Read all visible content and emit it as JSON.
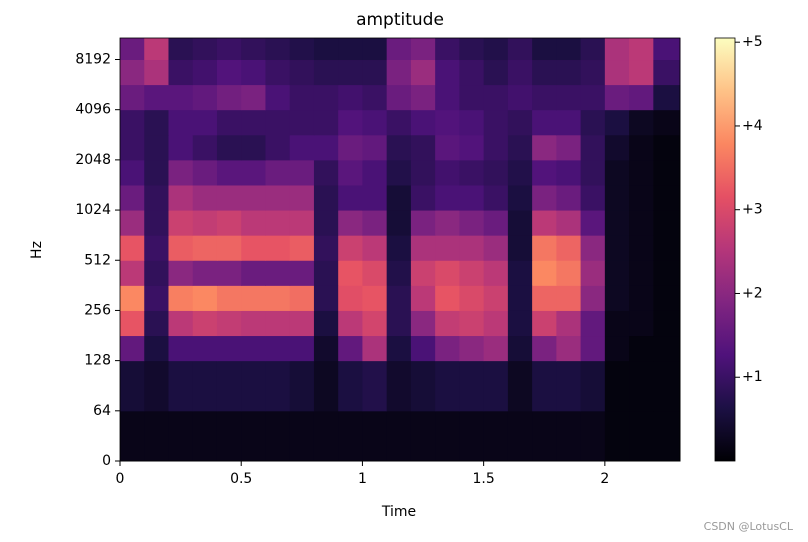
{
  "chart_data": {
    "type": "heatmap",
    "title": "amptitude",
    "x_label": "Time",
    "y_label": "Hz",
    "watermark": "CSDN @LotusCL",
    "colormap": "magma",
    "xlim": [
      0,
      2.31
    ],
    "xticks": [
      0,
      0.5,
      1,
      1.5,
      2
    ],
    "ylim": [
      0,
      11025
    ],
    "yscale": "symlog",
    "linthresh": 64,
    "yticks": [
      0,
      64,
      128,
      256,
      512,
      1024,
      2048,
      4096,
      8192
    ],
    "clim": [
      0,
      5.05
    ],
    "cticks": [
      {
        "value": 1,
        "label": "+1"
      },
      {
        "value": 2,
        "label": "+2"
      },
      {
        "value": 3,
        "label": "+3"
      },
      {
        "value": 4,
        "label": "+4"
      },
      {
        "value": 5,
        "label": "+5"
      }
    ],
    "x_edges": [
      0,
      0.1,
      0.2,
      0.3,
      0.4,
      0.5,
      0.6,
      0.7,
      0.8,
      0.9,
      1.0,
      1.1,
      1.2,
      1.3,
      1.4,
      1.5,
      1.6,
      1.7,
      1.8,
      1.9,
      2.0,
      2.1,
      2.2,
      2.31
    ],
    "y_edges": [
      0,
      64,
      128,
      181,
      256,
      362,
      512,
      724,
      1024,
      1448,
      2048,
      2896,
      4096,
      5793,
      8192,
      11025
    ],
    "z": [
      [
        0.2,
        0.2,
        0.2,
        0.2,
        0.2,
        0.2,
        0.2,
        0.2,
        0.2,
        0.2,
        0.2,
        0.2,
        0.2,
        0.2,
        0.2,
        0.2,
        0.2,
        0.2,
        0.2,
        0.2,
        0.1,
        0.1,
        0.1
      ],
      [
        0.5,
        0.4,
        0.6,
        0.6,
        0.6,
        0.6,
        0.6,
        0.5,
        0.3,
        0.6,
        0.7,
        0.4,
        0.5,
        0.6,
        0.6,
        0.6,
        0.3,
        0.6,
        0.6,
        0.5,
        0.1,
        0.1,
        0.1
      ],
      [
        1.5,
        0.6,
        1.2,
        1.2,
        1.2,
        1.2,
        1.2,
        1.2,
        0.4,
        1.5,
        2.4,
        0.6,
        1.2,
        1.8,
        2.0,
        2.2,
        0.5,
        1.8,
        2.2,
        1.5,
        0.2,
        0.1,
        0.1
      ],
      [
        3.2,
        0.8,
        2.6,
        2.8,
        2.7,
        2.6,
        2.6,
        2.6,
        0.6,
        2.6,
        2.9,
        0.8,
        2.0,
        2.7,
        2.8,
        2.6,
        0.6,
        2.8,
        2.4,
        1.5,
        0.2,
        0.2,
        0.1
      ],
      [
        3.8,
        1.0,
        3.7,
        3.8,
        3.6,
        3.6,
        3.6,
        3.5,
        0.8,
        3.1,
        3.2,
        0.8,
        2.6,
        3.2,
        3.0,
        2.8,
        0.6,
        3.4,
        3.4,
        2.0,
        0.3,
        0.2,
        0.1
      ],
      [
        2.6,
        0.9,
        2.0,
        1.8,
        1.8,
        1.6,
        1.6,
        1.6,
        0.8,
        3.2,
        3.0,
        0.7,
        2.8,
        3.0,
        2.8,
        2.6,
        0.6,
        3.8,
        3.6,
        2.2,
        0.3,
        0.2,
        0.1
      ],
      [
        3.2,
        1.0,
        3.3,
        3.4,
        3.4,
        3.2,
        3.2,
        3.3,
        0.9,
        2.8,
        2.6,
        0.6,
        2.4,
        2.4,
        2.4,
        2.2,
        0.5,
        3.6,
        3.4,
        2.0,
        0.3,
        0.2,
        0.1
      ],
      [
        2.2,
        0.9,
        2.8,
        2.7,
        2.8,
        2.6,
        2.6,
        2.6,
        0.8,
        2.0,
        1.8,
        0.5,
        1.8,
        2.0,
        1.8,
        1.6,
        0.5,
        2.6,
        2.4,
        1.4,
        0.3,
        0.2,
        0.1
      ],
      [
        1.6,
        0.9,
        2.4,
        2.2,
        2.2,
        2.2,
        2.2,
        2.2,
        0.8,
        1.2,
        1.2,
        0.5,
        1.0,
        1.2,
        1.2,
        1.0,
        0.6,
        1.8,
        1.6,
        1.0,
        0.3,
        0.2,
        0.1
      ],
      [
        1.2,
        0.8,
        1.8,
        1.6,
        1.4,
        1.4,
        1.6,
        1.6,
        0.9,
        1.4,
        1.2,
        0.7,
        0.9,
        1.1,
        1.0,
        0.9,
        0.7,
        1.3,
        1.2,
        0.9,
        0.3,
        0.2,
        0.1
      ],
      [
        1.0,
        0.8,
        1.2,
        1.0,
        0.8,
        0.8,
        1.0,
        1.2,
        1.2,
        1.6,
        1.5,
        0.8,
        0.9,
        1.4,
        1.3,
        1.0,
        0.8,
        2.0,
        1.8,
        0.9,
        0.4,
        0.2,
        0.1
      ],
      [
        1.0,
        0.8,
        1.2,
        1.2,
        1.0,
        1.0,
        1.0,
        1.0,
        1.0,
        1.3,
        1.2,
        1.0,
        1.2,
        1.3,
        1.2,
        1.0,
        0.9,
        1.2,
        1.2,
        0.8,
        0.6,
        0.3,
        0.2
      ],
      [
        1.6,
        1.4,
        1.4,
        1.5,
        1.7,
        1.8,
        1.2,
        1.0,
        1.0,
        1.1,
        1.0,
        1.6,
        1.8,
        1.2,
        1.0,
        1.0,
        1.1,
        1.0,
        1.0,
        1.0,
        1.6,
        1.5,
        0.6
      ],
      [
        2.0,
        2.4,
        1.0,
        1.1,
        1.3,
        1.2,
        1.0,
        0.9,
        0.8,
        0.8,
        0.8,
        1.8,
        2.2,
        1.2,
        1.0,
        0.8,
        1.0,
        0.8,
        0.8,
        0.9,
        2.4,
        2.6,
        1.0
      ],
      [
        1.6,
        2.6,
        0.8,
        0.9,
        1.0,
        0.9,
        0.8,
        0.7,
        0.6,
        0.6,
        0.6,
        1.6,
        1.8,
        1.0,
        0.8,
        0.7,
        0.9,
        0.6,
        0.6,
        0.8,
        2.4,
        2.6,
        1.2
      ]
    ]
  }
}
